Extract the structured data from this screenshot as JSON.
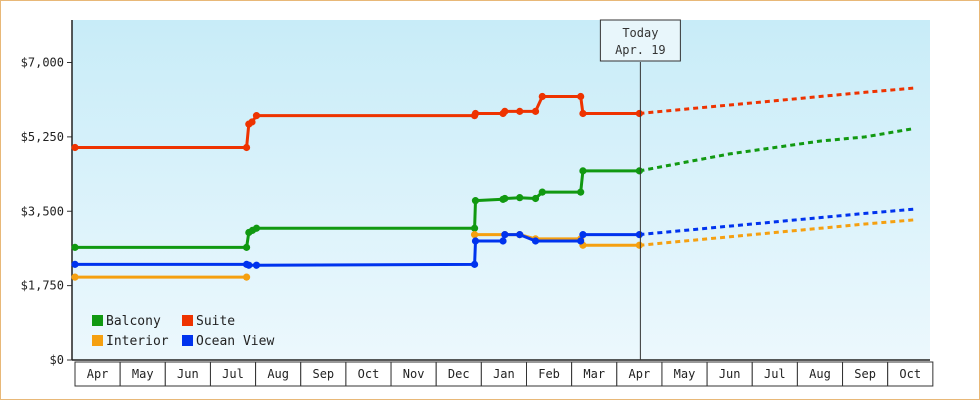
{
  "chart_data": {
    "type": "line",
    "title": "",
    "xlabel": "",
    "ylabel": "",
    "ylim": [
      0,
      8000
    ],
    "yticks": [
      "$0",
      "$1,750",
      "$3,500",
      "$5,250",
      "$7,000"
    ],
    "ytick_values": [
      0,
      1750,
      3500,
      5250,
      7000
    ],
    "month_labels": [
      "Apr",
      "May",
      "Jun",
      "Jul",
      "Aug",
      "Sep",
      "Oct",
      "Nov",
      "Dec",
      "Jan",
      "Feb",
      "Mar",
      "Apr",
      "May",
      "Jun",
      "Jul",
      "Aug",
      "Sep",
      "Oct"
    ],
    "today_marker": {
      "line1": "Today",
      "line2": "Apr. 19",
      "month_index": 12.5
    },
    "legend_placement": "bottom-left",
    "series": [
      {
        "name": "Balcony",
        "color": "#119911",
        "points": [
          [
            0,
            2650
          ],
          [
            3.8,
            2650
          ],
          [
            3.85,
            3000
          ],
          [
            3.93,
            3050
          ],
          [
            4.02,
            3100
          ],
          [
            8.85,
            3100
          ],
          [
            8.87,
            3750
          ],
          [
            9.48,
            3780
          ],
          [
            9.52,
            3800
          ],
          [
            9.85,
            3820
          ],
          [
            10.2,
            3800
          ],
          [
            10.35,
            3950
          ],
          [
            11.2,
            3950
          ],
          [
            11.25,
            4450
          ],
          [
            12.5,
            4450
          ]
        ],
        "forecast": [
          [
            12.5,
            4450
          ],
          [
            13.5,
            4650
          ],
          [
            14.5,
            4850
          ],
          [
            15.5,
            5000
          ],
          [
            16.5,
            5150
          ],
          [
            17.5,
            5250
          ],
          [
            18.6,
            5450
          ]
        ]
      },
      {
        "name": "Suite",
        "color": "#ee3300",
        "points": [
          [
            0,
            5000
          ],
          [
            3.8,
            5000
          ],
          [
            3.85,
            5550
          ],
          [
            3.92,
            5600
          ],
          [
            4.02,
            5750
          ],
          [
            8.85,
            5750
          ],
          [
            8.87,
            5800
          ],
          [
            9.48,
            5800
          ],
          [
            9.52,
            5850
          ],
          [
            9.85,
            5850
          ],
          [
            10.2,
            5850
          ],
          [
            10.35,
            6200
          ],
          [
            11.2,
            6200
          ],
          [
            11.25,
            5800
          ],
          [
            12.5,
            5800
          ]
        ],
        "forecast": [
          [
            12.5,
            5800
          ],
          [
            13.5,
            5900
          ],
          [
            14.5,
            6000
          ],
          [
            15.5,
            6100
          ],
          [
            16.5,
            6200
          ],
          [
            17.5,
            6300
          ],
          [
            18.6,
            6400
          ]
        ]
      },
      {
        "name": "Interior",
        "color": "#f5a010",
        "points": [
          [
            0,
            1950
          ],
          [
            3.8,
            1950
          ]
        ],
        "points_b": [
          [
            8.85,
            2950
          ],
          [
            9.52,
            2950
          ],
          [
            9.85,
            2950
          ],
          [
            10.2,
            2850
          ],
          [
            11.2,
            2850
          ],
          [
            11.25,
            2700
          ],
          [
            12.5,
            2700
          ]
        ],
        "forecast": [
          [
            12.5,
            2700
          ],
          [
            13.5,
            2800
          ],
          [
            14.5,
            2900
          ],
          [
            15.5,
            3000
          ],
          [
            16.5,
            3100
          ],
          [
            17.5,
            3200
          ],
          [
            18.6,
            3300
          ]
        ]
      },
      {
        "name": "Ocean View",
        "color": "#0033ee",
        "points": [
          [
            0,
            2250
          ],
          [
            3.8,
            2250
          ],
          [
            3.85,
            2230
          ],
          [
            4.02,
            2230
          ],
          [
            8.85,
            2250
          ],
          [
            8.87,
            2800
          ],
          [
            9.48,
            2800
          ],
          [
            9.52,
            2950
          ],
          [
            9.85,
            2950
          ],
          [
            10.2,
            2800
          ],
          [
            11.2,
            2800
          ],
          [
            11.25,
            2950
          ],
          [
            12.5,
            2950
          ]
        ],
        "forecast": [
          [
            12.5,
            2950
          ],
          [
            13.5,
            3050
          ],
          [
            14.5,
            3150
          ],
          [
            15.5,
            3250
          ],
          [
            16.5,
            3350
          ],
          [
            17.5,
            3450
          ],
          [
            18.6,
            3550
          ]
        ]
      }
    ]
  }
}
